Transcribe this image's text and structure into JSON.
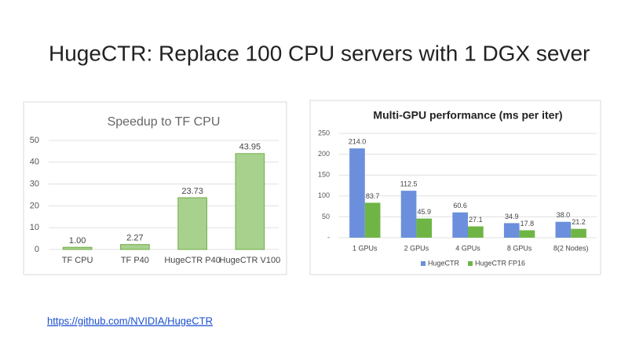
{
  "title": "HugeCTR: Replace 100 CPU servers with 1 DGX sever",
  "link": "https://github.com/NVIDIA/HugeCTR",
  "chart_data": [
    {
      "type": "bar",
      "title": "Speedup to TF CPU",
      "categories": [
        "TF CPU",
        "TF P40",
        "HugeCTR P40",
        "HugeCTR V100"
      ],
      "values": [
        1.0,
        2.27,
        23.73,
        43.95
      ],
      "value_labels": [
        "1.00",
        "2.27",
        "23.73",
        "43.95"
      ],
      "color": "#a9d18e",
      "ylim": [
        0,
        50
      ],
      "yticks": [
        0,
        10,
        20,
        30,
        40,
        50
      ],
      "grid": true
    },
    {
      "type": "grouped_bar",
      "title": "Multi-GPU performance (ms per iter)",
      "categories": [
        "1 GPUs",
        "2 GPUs",
        "4 GPUs",
        "8 GPUs",
        "8(2 Nodes)"
      ],
      "series": [
        {
          "name": "HugeCTR",
          "color": "#6b8fdc",
          "values": [
            214.0,
            112.5,
            60.6,
            34.9,
            38.0
          ],
          "value_labels": [
            "214.0",
            "112.5",
            "60.6",
            "34.9",
            "38.0"
          ]
        },
        {
          "name": "HugeCTR FP16",
          "color": "#6fb545",
          "values": [
            83.7,
            45.9,
            27.1,
            17.8,
            21.2
          ]
        }
      ],
      "ylim": [
        0,
        250
      ],
      "yticks": [
        {
          "value": 0,
          "label": "-"
        },
        50,
        100,
        150,
        200,
        250
      ],
      "grid": true,
      "legend": "bottom"
    }
  ]
}
